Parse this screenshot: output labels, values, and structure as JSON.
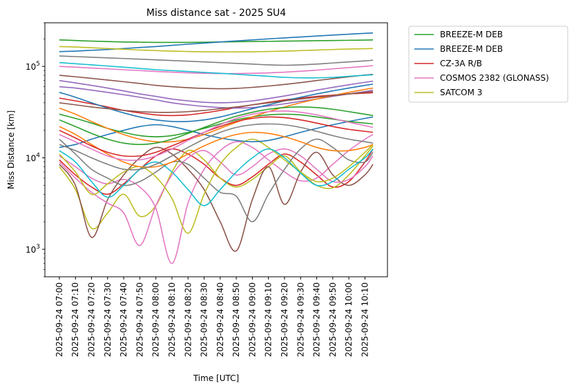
{
  "chart_data": {
    "type": "line",
    "title": "Miss distance sat - 2025 SU4",
    "xlabel": "Time [UTC]",
    "ylabel": "Miss Distance [km]",
    "yscale": "log",
    "ylim": [
      500,
      300000
    ],
    "xlim_minutes": [
      -9,
      204
    ],
    "x_ticks": [
      "2025-09-24 07:00",
      "2025-09-24 07:10",
      "2025-09-24 07:20",
      "2025-09-24 07:30",
      "2025-09-24 07:40",
      "2025-09-24 07:50",
      "2025-09-24 08:00",
      "2025-09-24 08:10",
      "2025-09-24 08:20",
      "2025-09-24 08:30",
      "2025-09-24 08:40",
      "2025-09-24 08:50",
      "2025-09-24 09:00",
      "2025-09-24 09:10",
      "2025-09-24 09:20",
      "2025-09-24 09:30",
      "2025-09-24 09:40",
      "2025-09-24 09:50",
      "2025-09-24 10:00",
      "2025-09-24 10:10"
    ],
    "x_tick_minutes": [
      0,
      10,
      20,
      30,
      40,
      50,
      60,
      70,
      80,
      90,
      100,
      110,
      120,
      130,
      140,
      150,
      160,
      170,
      180,
      190
    ],
    "y_ticks": [
      {
        "value": 1000,
        "base": "10",
        "exp": "3"
      },
      {
        "value": 10000,
        "base": "10",
        "exp": "4"
      },
      {
        "value": 100000,
        "base": "10",
        "exp": "5"
      }
    ],
    "legend_position": "outside upper right",
    "legend": [
      {
        "name": "BREEZE-M DEB",
        "color": "#2ca02c"
      },
      {
        "name": "BREEZE-M DEB",
        "color": "#1f77b4"
      },
      {
        "name": "CZ-3A R/B",
        "color": "#d62728"
      },
      {
        "name": "COSMOS 2382 (GLONASS)",
        "color": "#e377c2"
      },
      {
        "name": "SATCOM 3",
        "color": "#bcbd22"
      }
    ],
    "palette": [
      "#1f77b4",
      "#ff7f0e",
      "#2ca02c",
      "#d62728",
      "#9467bd",
      "#8c564b",
      "#e377c2",
      "#7f7f7f",
      "#bcbd22",
      "#17becf"
    ],
    "x": [
      0,
      10,
      20,
      30,
      40,
      50,
      60,
      70,
      80,
      90,
      100,
      110,
      120,
      130,
      140,
      150,
      160,
      170,
      180,
      190,
      195
    ],
    "series": [
      {
        "name": "BREEZE-M DEB",
        "color": "#2ca02c",
        "values": [
          195000,
          192000,
          189000,
          187000,
          185000,
          184000,
          183000,
          183000,
          183000,
          184000,
          185000,
          186000,
          187000,
          188000,
          189000,
          190000,
          191000,
          192000,
          193000,
          194000,
          195000
        ]
      },
      {
        "name": "BREEZE-M DEB",
        "color": "#1f77b4",
        "values": [
          145000,
          147000,
          150000,
          153000,
          157000,
          161000,
          165000,
          170000,
          175000,
          180000,
          185000,
          190000,
          195000,
          200000,
          205000,
          210000,
          215000,
          220000,
          225000,
          230000,
          232000
        ]
      },
      {
        "name": "CZ-3A R/B",
        "color": "#d62728",
        "values": [
          9500,
          6500,
          4800,
          4000,
          5200,
          7500,
          10500,
          12500,
          11000,
          8500,
          6000,
          5000,
          6200,
          8500,
          11000,
          9000,
          6500,
          4800,
          5500,
          9000,
          12500
        ]
      },
      {
        "name": "COSMOS 2382 (GLONASS)",
        "color": "#e377c2",
        "values": [
          10500,
          8000,
          6000,
          5200,
          5800,
          4800,
          2800,
          700,
          3200,
          7500,
          12000,
          15000,
          13000,
          9500,
          7000,
          5600,
          6000,
          8500,
          12000,
          16000,
          18000
        ]
      },
      {
        "name": "SATCOM 3",
        "color": "#bcbd22",
        "values": [
          8000,
          4500,
          1700,
          2500,
          4000,
          2300,
          3000,
          7000,
          12000,
          9500,
          6000,
          4800,
          5800,
          8000,
          10500,
          7000,
          5000,
          4700,
          6500,
          10500,
          13500
        ]
      },
      {
        "values": [
          8500,
          5000,
          1350,
          3500,
          6500,
          10000,
          13000,
          11000,
          7500,
          4500,
          2000,
          960,
          3500,
          8000,
          3100,
          7000,
          11500,
          6500,
          5000,
          6500,
          8500
        ]
      },
      {
        "values": [
          9000,
          6000,
          4200,
          3200,
          2500,
          1100,
          3000,
          6500,
          10000,
          12000,
          9000,
          6500,
          8000,
          11000,
          12500,
          10500,
          7500,
          5500,
          5800,
          8000,
          10500
        ]
      },
      {
        "values": [
          16000,
          11000,
          7500,
          6000,
          5000,
          5500,
          7000,
          9000,
          8500,
          6000,
          4200,
          3800,
          2000,
          4000,
          7500,
          12500,
          16000,
          13000,
          9500,
          9000,
          11500
        ]
      },
      {
        "values": [
          11000,
          7000,
          4000,
          5200,
          7000,
          8000,
          6200,
          3600,
          1500,
          4000,
          8500,
          13000,
          16000,
          13000,
          9500,
          7000,
          5500,
          6000,
          8000,
          11500,
          14000
        ]
      },
      {
        "values": [
          12000,
          9000,
          5500,
          3700,
          5000,
          7500,
          9000,
          7000,
          4500,
          3000,
          4500,
          7000,
          10000,
          12500,
          10000,
          6800,
          5000,
          5500,
          7500,
          10000,
          12500
        ]
      },
      {
        "values": [
          13000,
          14000,
          16000,
          18000,
          20000,
          22000,
          23000,
          22000,
          20000,
          18000,
          16500,
          15500,
          15000,
          15500,
          17000,
          19000,
          21000,
          23000,
          25000,
          27000,
          28000
        ]
      },
      {
        "values": [
          22000,
          18000,
          14000,
          11000,
          9000,
          8000,
          8000,
          9000,
          11000,
          13500,
          16000,
          18000,
          19000,
          18500,
          17000,
          15000,
          13000,
          12000,
          12000,
          13000,
          14000
        ]
      },
      {
        "values": [
          30000,
          27000,
          24000,
          21000,
          19000,
          17500,
          17000,
          17500,
          19000,
          21000,
          23500,
          26000,
          28000,
          29500,
          30000,
          29500,
          28000,
          26500,
          25000,
          24000,
          23500
        ]
      },
      {
        "values": [
          45000,
          42000,
          39000,
          36000,
          33000,
          31000,
          29500,
          29000,
          29500,
          31000,
          33000,
          35500,
          38000,
          40500,
          43000,
          45000,
          47000,
          48500,
          50000,
          51000,
          51500
        ]
      },
      {
        "values": [
          60000,
          58000,
          55000,
          52000,
          49000,
          46000,
          43000,
          40000,
          38000,
          36500,
          35500,
          35000,
          35500,
          37000,
          39000,
          41500,
          44000,
          47000,
          50000,
          53000,
          55000
        ]
      },
      {
        "values": [
          80000,
          77000,
          74000,
          71000,
          68000,
          65000,
          62000,
          60000,
          58500,
          57500,
          57000,
          57500,
          59000,
          61000,
          63500,
          66500,
          70000,
          73500,
          77000,
          80500,
          82000
        ]
      },
      {
        "values": [
          100000,
          98000,
          96000,
          94000,
          92000,
          90000,
          88000,
          86500,
          85000,
          84000,
          83500,
          83500,
          84000,
          85000,
          86500,
          88500,
          91000,
          94000,
          97000,
          100000,
          102000
        ]
      },
      {
        "values": [
          130000,
          128000,
          126000,
          124000,
          122000,
          120000,
          118000,
          116000,
          114000,
          112000,
          110000,
          108000,
          106000,
          104000,
          103000,
          104000,
          106000,
          109000,
          112000,
          115000,
          117000
        ]
      },
      {
        "values": [
          165000,
          163000,
          160000,
          157000,
          154000,
          151000,
          149000,
          147000,
          145500,
          144500,
          144000,
          144000,
          144500,
          145500,
          147000,
          149000,
          151000,
          153000,
          155000,
          156000,
          157000
        ]
      },
      {
        "values": [
          110000,
          107000,
          104000,
          101000,
          98000,
          95000,
          92000,
          90000,
          88000,
          86000,
          84000,
          82000,
          80000,
          78000,
          76000,
          75000,
          75000,
          76000,
          78000,
          80000,
          81000
        ]
      },
      {
        "values": [
          52000,
          46000,
          40000,
          35000,
          31000,
          28000,
          26000,
          25000,
          25000,
          26000,
          28000,
          31000,
          34500,
          38000,
          42000,
          46000,
          50000,
          54000,
          58000,
          62000,
          64000
        ]
      },
      {
        "values": [
          35000,
          30000,
          25000,
          21000,
          18000,
          16000,
          15000,
          15000,
          16000,
          18000,
          21000,
          24500,
          28000,
          32000,
          36000,
          40000,
          44000,
          48000,
          52000,
          56000,
          58000
        ]
      },
      {
        "values": [
          26000,
          22000,
          18500,
          16000,
          14500,
          14000,
          14500,
          16000,
          18500,
          21500,
          25000,
          28500,
          31500,
          34000,
          35500,
          36000,
          35500,
          34000,
          32000,
          30000,
          29000
        ]
      },
      {
        "values": [
          20000,
          16500,
          13500,
          11500,
          10500,
          10500,
          11500,
          13500,
          16000,
          19000,
          22000,
          25000,
          27000,
          28000,
          27500,
          26000,
          24000,
          22000,
          20500,
          19500,
          19000
        ]
      },
      {
        "values": [
          70000,
          66000,
          62000,
          58000,
          54000,
          50000,
          47000,
          44000,
          42000,
          40500,
          40000,
          40500,
          42000,
          44500,
          47500,
          51000,
          55000,
          59000,
          63000,
          67000,
          69000
        ]
      },
      {
        "values": [
          40000,
          38000,
          36000,
          34500,
          33000,
          32000,
          31500,
          31500,
          32000,
          33000,
          34500,
          36000,
          38000,
          40000,
          42000,
          44000,
          46000,
          48000,
          50000,
          52000,
          53000
        ]
      },
      {
        "values": [
          18000,
          15000,
          12500,
          10500,
          9500,
          9500,
          10500,
          12500,
          15500,
          19000,
          23000,
          27000,
          30000,
          32000,
          32500,
          31500,
          29500,
          27000,
          24500,
          22500,
          21500
        ]
      },
      {
        "values": [
          14000,
          12000,
          10000,
          8500,
          7500,
          7500,
          8500,
          10500,
          13000,
          16000,
          19000,
          21500,
          23000,
          23500,
          23000,
          21500,
          19500,
          17500,
          16000,
          15000,
          14500
        ]
      }
    ]
  }
}
